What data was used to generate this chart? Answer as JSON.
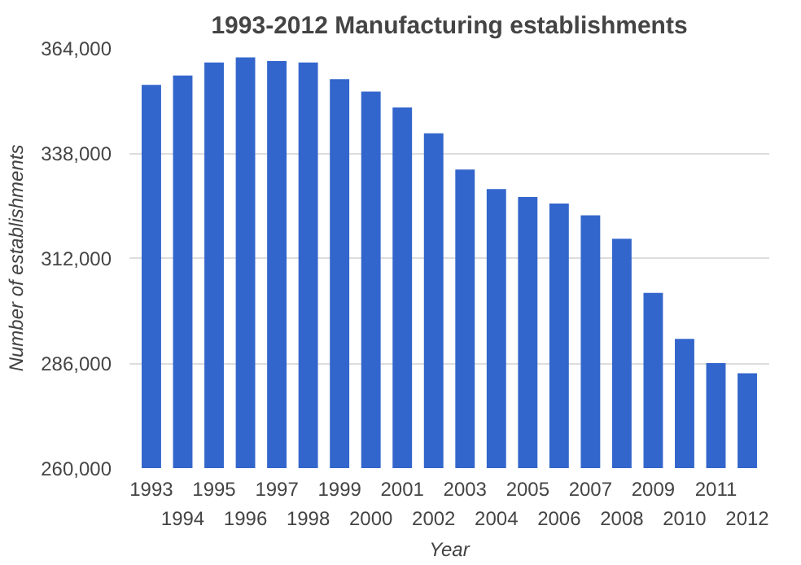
{
  "chart_data": {
    "type": "bar",
    "title": "1993-2012 Manufacturing establishments",
    "xlabel": "Year",
    "ylabel": "Number of establishments",
    "categories": [
      "1993",
      "1994",
      "1995",
      "1996",
      "1997",
      "1998",
      "1999",
      "2000",
      "2001",
      "2002",
      "2003",
      "2004",
      "2005",
      "2006",
      "2007",
      "2008",
      "2009",
      "2010",
      "2011",
      "2012"
    ],
    "values": [
      354900,
      357200,
      360400,
      361700,
      360800,
      360400,
      356300,
      353200,
      349300,
      342900,
      333900,
      329100,
      327100,
      325500,
      322600,
      316800,
      303400,
      292000,
      286000,
      283500
    ],
    "color": "#3366cc",
    "ylim": [
      260000,
      364000
    ],
    "yticks": [
      {
        "value": 260000,
        "label": "260,000"
      },
      {
        "value": 286000,
        "label": "286,000"
      },
      {
        "value": 312000,
        "label": "312,000"
      },
      {
        "value": 338000,
        "label": "338,000"
      },
      {
        "value": 364000,
        "label": "364,000"
      }
    ],
    "grid": "y"
  }
}
